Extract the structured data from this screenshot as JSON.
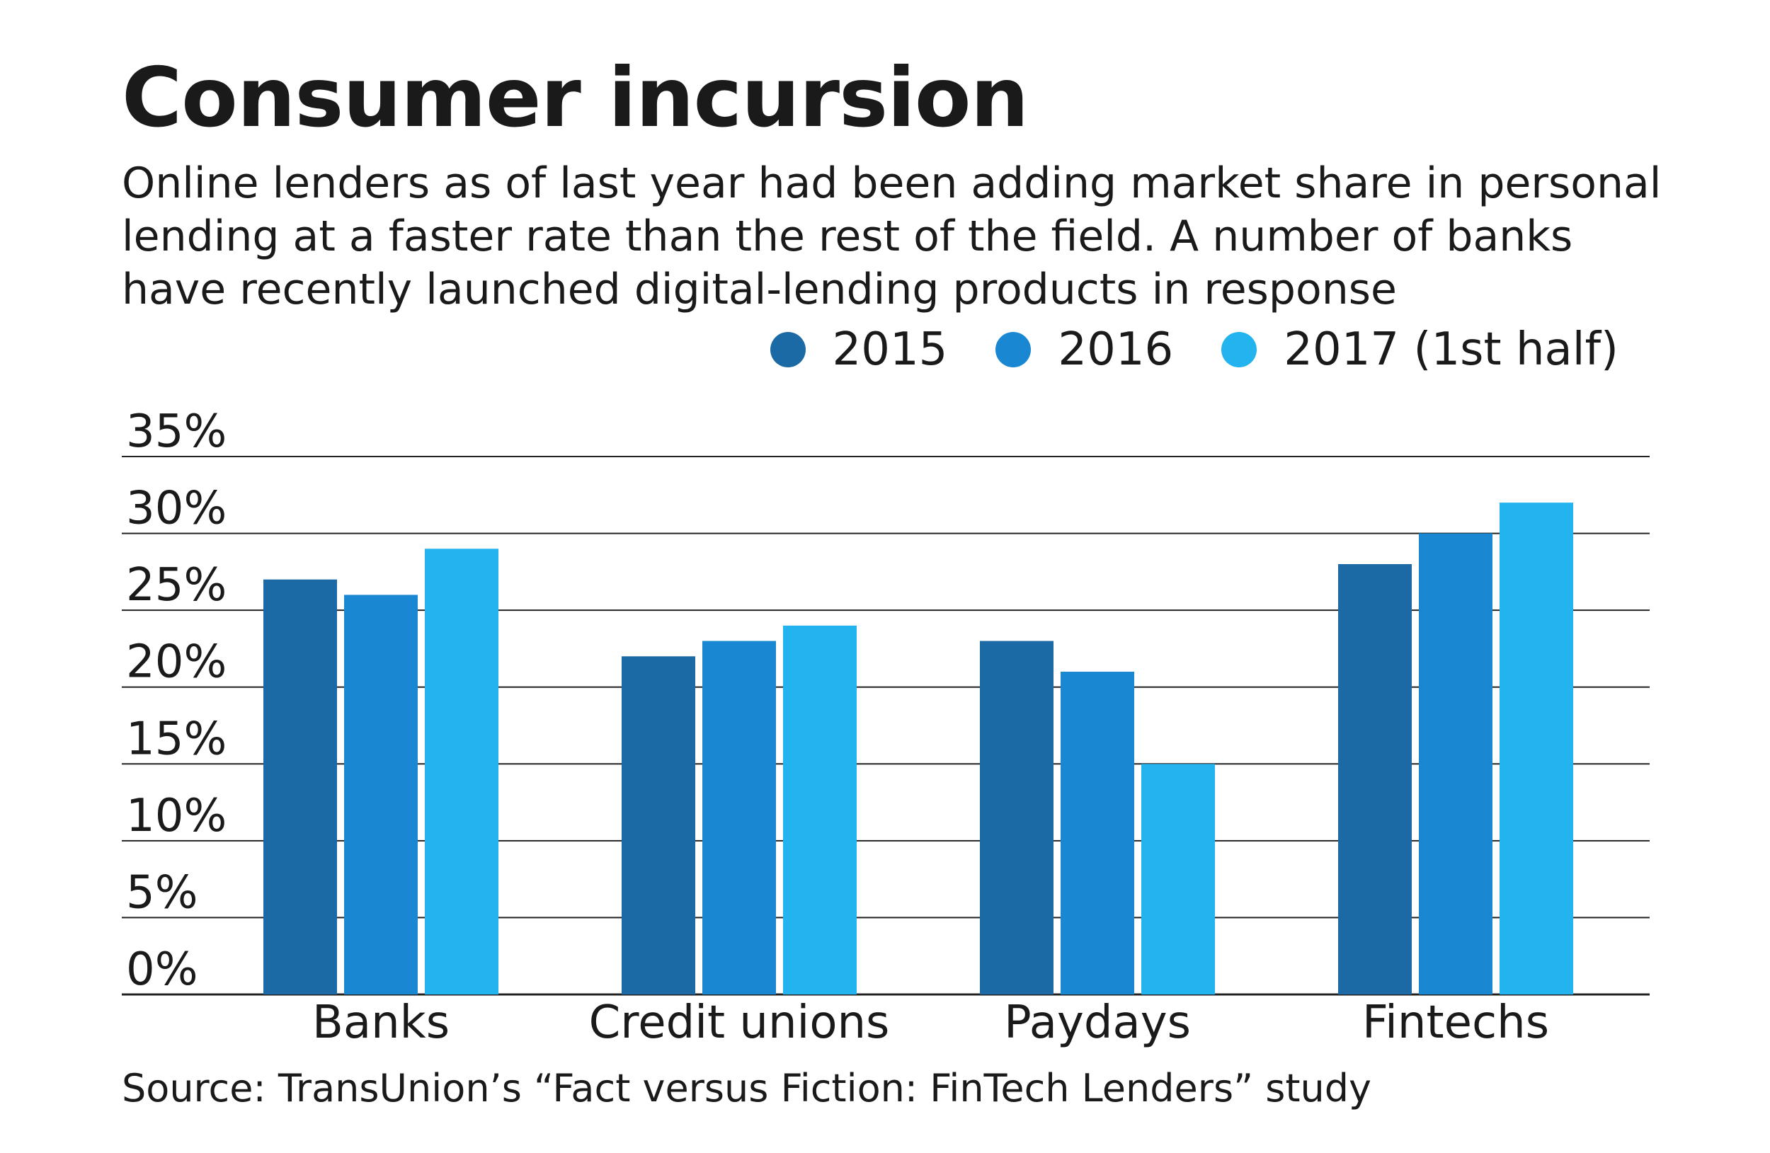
{
  "chart_data": {
    "type": "bar",
    "title": "Consumer incursion",
    "subtitle": "Online lenders as of last year had been adding market share in personal lending at a faster rate than the rest of the field. A number of banks have recently launched digital-lending products in response",
    "categories": [
      "Banks",
      "Credit unions",
      "Paydays",
      "Fintechs"
    ],
    "series": [
      {
        "name": "2015",
        "color": "#1b6aa5",
        "values": [
          27,
          22,
          23,
          28
        ]
      },
      {
        "name": "2016",
        "color": "#1a87d2",
        "values": [
          26,
          23,
          21,
          30
        ]
      },
      {
        "name": "2017 (1st half)",
        "color": "#23b3ef",
        "values": [
          29,
          24,
          15,
          32
        ]
      }
    ],
    "y_ticks": [
      "0%",
      "5%",
      "10%",
      "15%",
      "20%",
      "25%",
      "30%",
      "35%"
    ],
    "y_tick_values": [
      0,
      5,
      10,
      15,
      20,
      25,
      30,
      35
    ],
    "ylim": [
      0,
      35
    ],
    "xlabel": "",
    "ylabel": "",
    "grid": true,
    "legend": "top-right",
    "source": "Source: TransUnion’s “Fact versus Fiction: FinTech Lenders” study"
  }
}
